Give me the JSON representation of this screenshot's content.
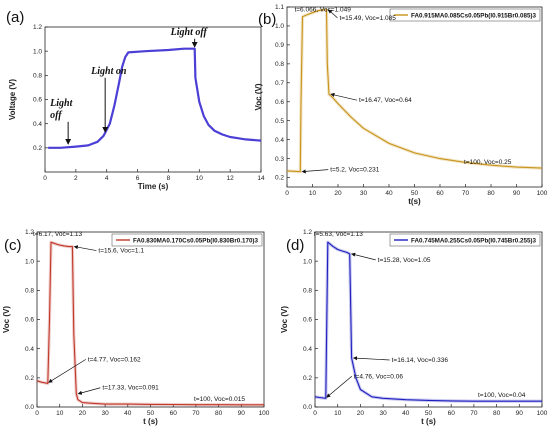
{
  "chart_data": [
    {
      "id": "a",
      "panel_label": "(a)",
      "type": "line",
      "xlabel": "Time (s)",
      "ylabel": "Voltage (V)",
      "xlim": [
        0,
        14
      ],
      "ylim": [
        0.0,
        1.2
      ],
      "xticks": [
        0,
        2,
        4,
        6,
        8,
        10,
        12,
        14
      ],
      "yticks": [
        0.2,
        0.4,
        0.6,
        0.8,
        1.0,
        1.2
      ],
      "grid": false,
      "legend": null,
      "series": [
        {
          "color": "#4b3fd6",
          "x": [
            0.2,
            1.0,
            2.0,
            2.8,
            3.4,
            3.8,
            4.2,
            4.5,
            4.8,
            5.0,
            5.2,
            5.4,
            6.5,
            8.0,
            9.0,
            9.7,
            9.75,
            10.0,
            10.3,
            10.6,
            11.0,
            11.5,
            12.0,
            12.5,
            13.0,
            13.5,
            14.0
          ],
          "y": [
            0.2,
            0.2,
            0.21,
            0.22,
            0.25,
            0.3,
            0.4,
            0.55,
            0.74,
            0.87,
            0.95,
            0.99,
            1.0,
            1.01,
            1.02,
            1.02,
            0.78,
            0.58,
            0.46,
            0.39,
            0.34,
            0.31,
            0.29,
            0.28,
            0.27,
            0.265,
            0.26
          ]
        }
      ],
      "annotations": [
        {
          "text": "Light off",
          "x": 1.5,
          "y": 0.2
        },
        {
          "text": "Light on",
          "x": 3.9,
          "y": 0.3
        },
        {
          "text": "Light off",
          "x": 9.7,
          "y": 1.02
        }
      ]
    },
    {
      "id": "b",
      "panel_label": "(b)",
      "type": "line",
      "xlabel": "t(s)",
      "ylabel": "Voc (V)",
      "xlim": [
        0,
        100
      ],
      "ylim": [
        0.15,
        1.1
      ],
      "xticks": [
        0,
        10,
        20,
        30,
        40,
        50,
        60,
        70,
        80,
        90,
        100
      ],
      "yticks": [
        0.2,
        0.3,
        0.4,
        0.5,
        0.6,
        0.7,
        0.8,
        0.9,
        1.0,
        1.1
      ],
      "grid": false,
      "legend_position": "top-right",
      "legend_text": "FA0.915MA0.085Cs0.05Pb(I0.915Br0.085)3",
      "series": [
        {
          "name": "FA0.915MA0.085Cs0.05Pb(I0.915Br0.085)3",
          "color": "#c8941a",
          "x": [
            0,
            3,
            5.2,
            5.5,
            6.066,
            8,
            10,
            12,
            14,
            15.49,
            15.8,
            16.47,
            18,
            20,
            25,
            30,
            40,
            50,
            60,
            70,
            80,
            90,
            100
          ],
          "y": [
            0.235,
            0.233,
            0.231,
            0.6,
            1.049,
            1.06,
            1.07,
            1.08,
            1.085,
            1.085,
            0.8,
            0.64,
            0.62,
            0.59,
            0.52,
            0.46,
            0.38,
            0.33,
            0.3,
            0.28,
            0.265,
            0.255,
            0.25
          ]
        }
      ],
      "annotations": [
        {
          "text": "t=6.066, Voc=1.049",
          "x": 6.066,
          "y": 1.049
        },
        {
          "text": "t=15.49, Voc=1.085",
          "x": 15.49,
          "y": 1.085
        },
        {
          "text": "t=16.47, Voc=0.64",
          "x": 16.47,
          "y": 0.64
        },
        {
          "text": "t=5.2, Voc=0.231",
          "x": 5.2,
          "y": 0.231
        },
        {
          "text": "t=100, Voc=0.25",
          "x": 100,
          "y": 0.25
        }
      ]
    },
    {
      "id": "c",
      "panel_label": "(c)",
      "type": "line",
      "xlabel": "t (s)",
      "ylabel": "Voc (V)",
      "xlim": [
        0,
        100
      ],
      "ylim": [
        0.0,
        1.2
      ],
      "xticks": [
        0,
        10,
        20,
        30,
        40,
        50,
        60,
        70,
        80,
        90,
        100
      ],
      "yticks": [
        0.0,
        0.2,
        0.4,
        0.6,
        0.8,
        1.0,
        1.2
      ],
      "grid": false,
      "legend_position": "top-right",
      "legend_text": "FA0.830MA0.170Cs0.05Pb(I0.830Br0.170)3",
      "series": [
        {
          "name": "FA0.830MA0.170Cs0.05Pb(I0.830Br0.170)3",
          "color": "#c0392b",
          "x": [
            0,
            2,
            4.77,
            5.5,
            6.17,
            8,
            10,
            12,
            14,
            15.6,
            16.2,
            17.33,
            18,
            20,
            25,
            30,
            40,
            50,
            60,
            70,
            80,
            90,
            100
          ],
          "y": [
            0.18,
            0.17,
            0.162,
            0.6,
            1.13,
            1.12,
            1.11,
            1.105,
            1.1,
            1.1,
            0.5,
            0.091,
            0.05,
            0.03,
            0.025,
            0.02,
            0.02,
            0.018,
            0.017,
            0.016,
            0.016,
            0.015,
            0.015
          ]
        }
      ],
      "annotations": [
        {
          "text": "t=6.17, Voc=1.13",
          "x": 6.17,
          "y": 1.13
        },
        {
          "text": "t=15.6, Voc=1.1",
          "x": 15.6,
          "y": 1.1
        },
        {
          "text": "t=4.77, Voc=0.162",
          "x": 4.77,
          "y": 0.162
        },
        {
          "text": "t=17.33, Voc=0.091",
          "x": 17.33,
          "y": 0.091
        },
        {
          "text": "t=100, Voc=0.015",
          "x": 100,
          "y": 0.015
        }
      ]
    },
    {
      "id": "d",
      "panel_label": "(d)",
      "type": "line",
      "xlabel": "t (s)",
      "ylabel": "Voc (V)",
      "xlim": [
        0,
        100
      ],
      "ylim": [
        0.0,
        1.2
      ],
      "xticks": [
        0,
        10,
        20,
        30,
        40,
        50,
        60,
        70,
        80,
        90,
        100
      ],
      "yticks": [
        0.0,
        0.2,
        0.4,
        0.6,
        0.8,
        1.0,
        1.2
      ],
      "grid": false,
      "legend_position": "top-right",
      "legend_text": "FA0.745MA0.255Cs0.05Pb(I0.745Br0.255)3",
      "series": [
        {
          "name": "FA0.745MA0.255Cs0.05Pb(I0.745Br0.255)3",
          "color": "#1f1fc0",
          "x": [
            0,
            2,
            4.76,
            5.2,
            5.63,
            8,
            10,
            12,
            14,
            15.28,
            15.6,
            16.14,
            18,
            20,
            25,
            30,
            40,
            50,
            60,
            70,
            80,
            90,
            100
          ],
          "y": [
            0.07,
            0.065,
            0.06,
            0.6,
            1.13,
            1.1,
            1.08,
            1.07,
            1.06,
            1.05,
            0.8,
            0.336,
            0.2,
            0.12,
            0.07,
            0.06,
            0.05,
            0.045,
            0.042,
            0.04,
            0.04,
            0.04,
            0.04
          ]
        }
      ],
      "annotations": [
        {
          "text": "t=5.63, Voc=1.13",
          "x": 5.63,
          "y": 1.13
        },
        {
          "text": "t=15.28, Voc=1.05",
          "x": 15.28,
          "y": 1.05
        },
        {
          "text": "t=16.14, Voc=0.336",
          "x": 16.14,
          "y": 0.336
        },
        {
          "text": "t=4.76, Voc=0.06",
          "x": 4.76,
          "y": 0.06
        },
        {
          "text": "t=100, Voc=0.04",
          "x": 100,
          "y": 0.04
        }
      ]
    }
  ]
}
